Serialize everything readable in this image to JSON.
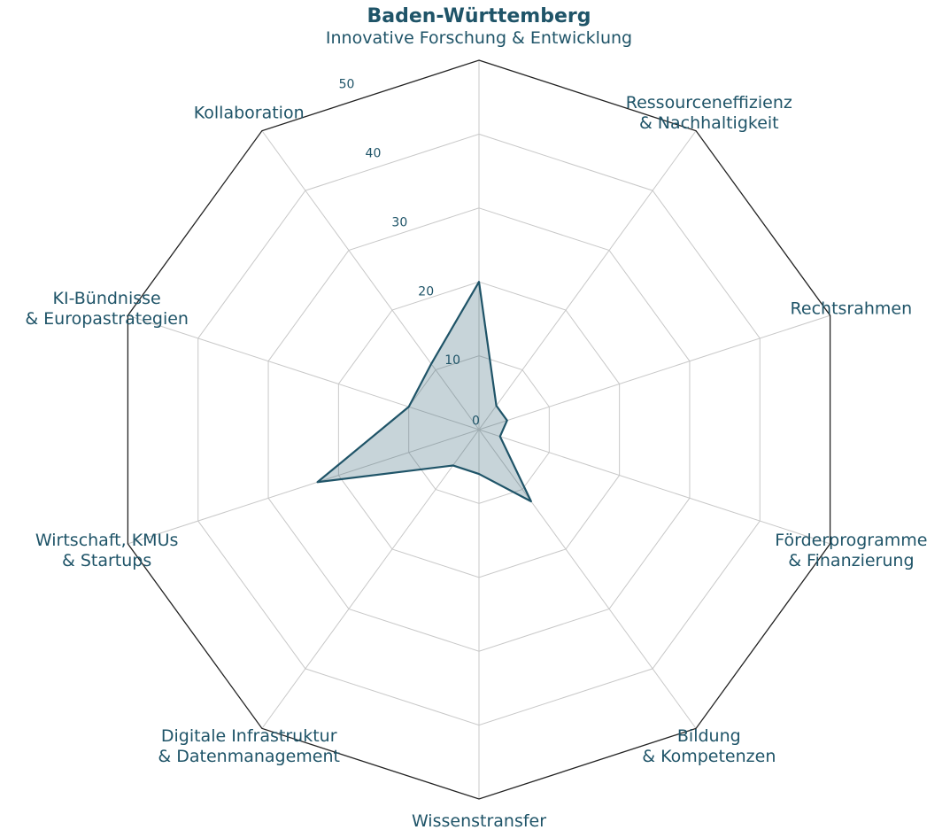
{
  "chart_data": {
    "type": "radar",
    "title": "Baden-Württemberg",
    "categories": [
      [
        "Innovative Forschung & Entwicklung"
      ],
      [
        "Ressourceneffizienz",
        "& Nachhaltigkeit"
      ],
      [
        "Rechtsrahmen"
      ],
      [
        "Förderprogramme",
        "& Finanzierung"
      ],
      [
        "Bildung",
        "& Kompetenzen"
      ],
      [
        "Wissenstransfer"
      ],
      [
        "Digitale Infrastruktur",
        "& Datenmanagement"
      ],
      [
        "Wirtschaft, KMUs",
        "& Startups"
      ],
      [
        "KI-Bündnisse",
        "& Europastrategien"
      ],
      [
        "Kollaboration"
      ]
    ],
    "values": [
      20,
      4,
      4,
      3,
      12,
      6,
      6,
      23,
      10,
      11
    ],
    "color": "#1f5468",
    "ylim": [
      0,
      50
    ],
    "yticks": [
      0,
      10,
      20,
      30,
      40,
      50
    ],
    "grid": true
  }
}
